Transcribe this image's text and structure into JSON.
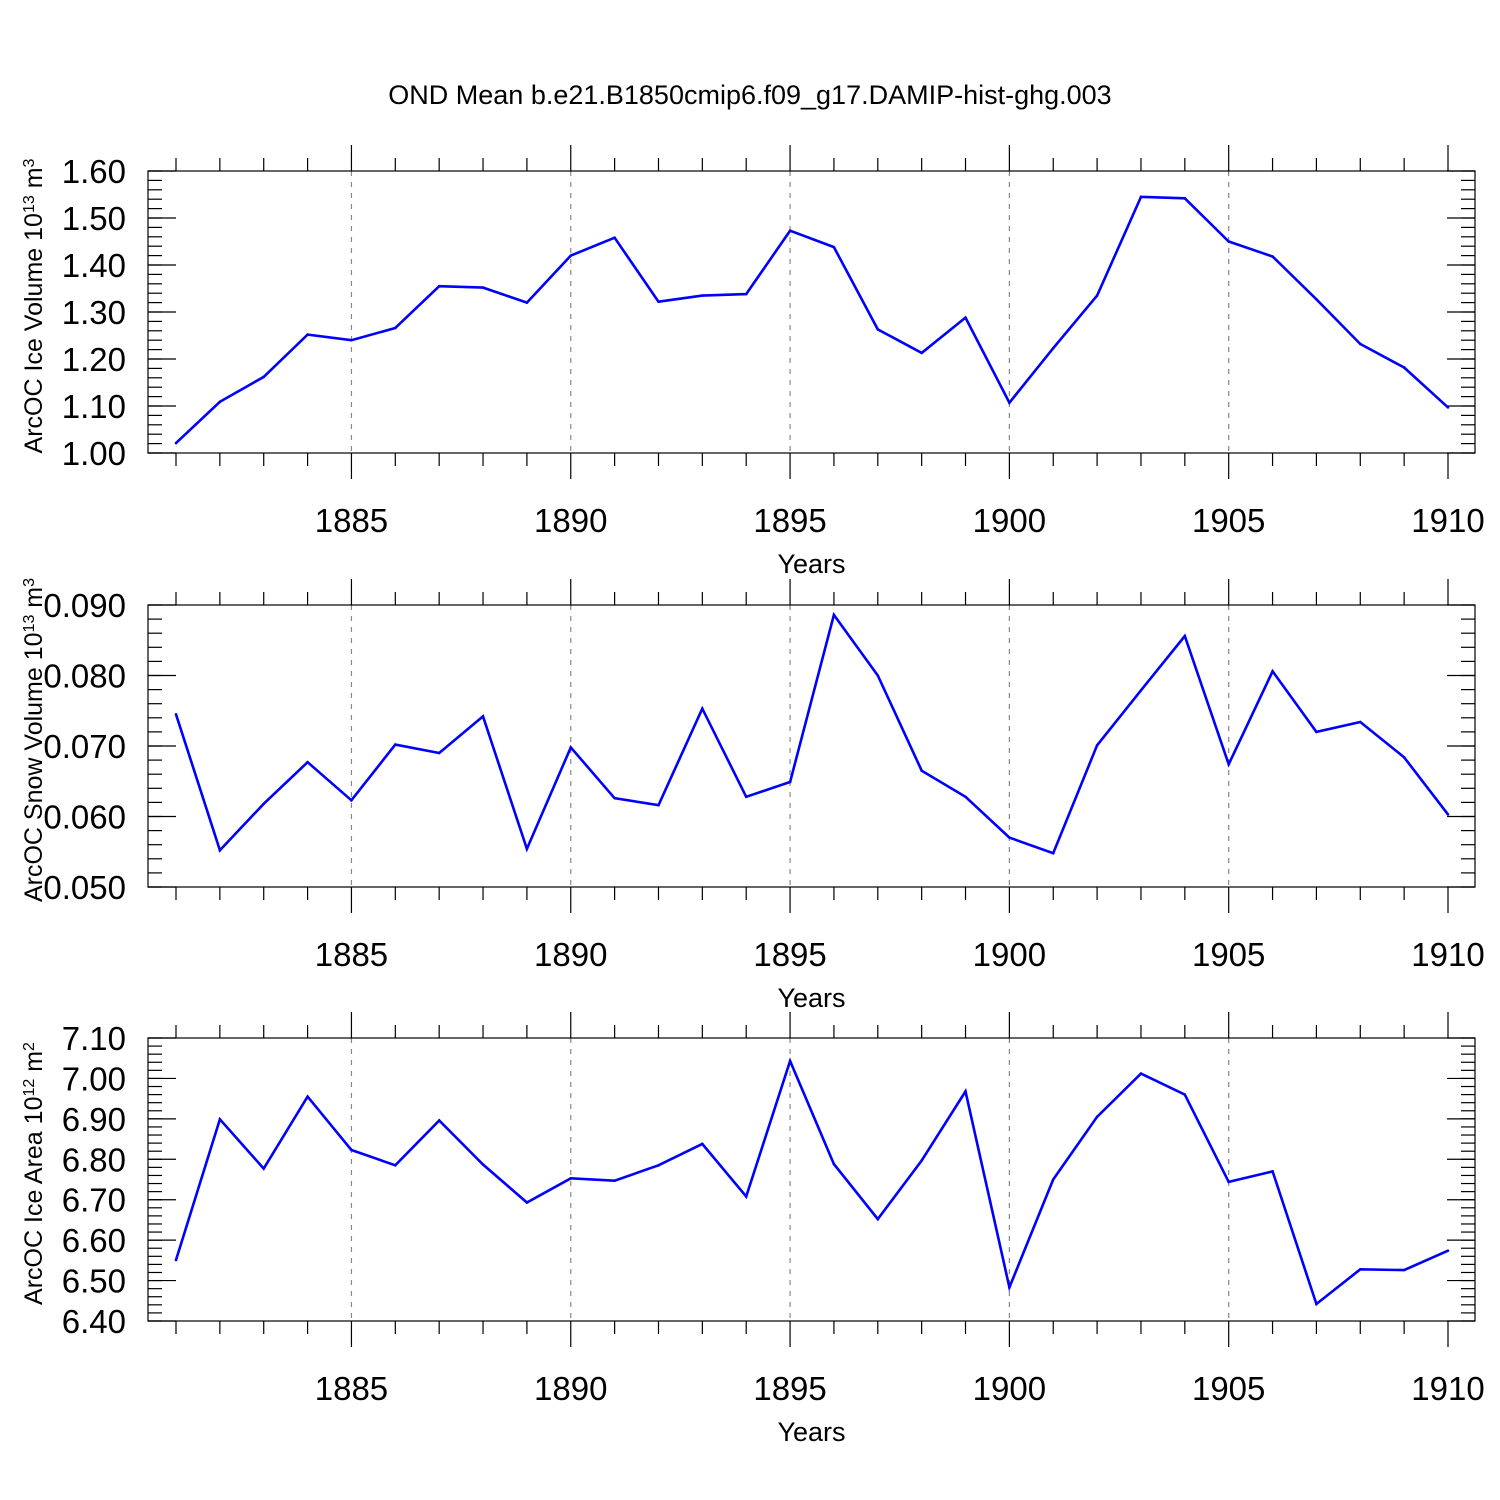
{
  "figure": {
    "title": "OND Mean b.e21.B1850cmip6.f09_g17.DAMIP-hist-ghg.003",
    "line_color": "#0000ff"
  },
  "chart_data": [
    {
      "type": "line",
      "title": "OND Mean b.e21.B1850cmip6.f09_g17.DAMIP-hist-ghg.003",
      "xlabel": "Years",
      "ylabel": "ArcOC Ice Volume 10",
      "ylabel_exp": "13",
      "ylabel_unit": " m",
      "ylabel_unit_exp": "3",
      "xlim": [
        1881,
        1910
      ],
      "ylim": [
        1.0,
        1.6
      ],
      "x_major_ticks": [
        1885,
        1890,
        1895,
        1900,
        1905,
        1910
      ],
      "x_tick_labels": [
        "1885",
        "1890",
        "1895",
        "1900",
        "1905",
        "1910"
      ],
      "y_major_ticks": [
        1.0,
        1.1,
        1.2,
        1.3,
        1.4,
        1.5,
        1.6
      ],
      "y_tick_labels": [
        "1.00",
        "1.10",
        "1.20",
        "1.30",
        "1.40",
        "1.50",
        "1.60"
      ],
      "y_minor_step": 0.02,
      "grid": "vertical dashed at major x ticks",
      "x": [
        1881,
        1882,
        1883,
        1884,
        1885,
        1886,
        1887,
        1888,
        1889,
        1890,
        1891,
        1892,
        1893,
        1894,
        1895,
        1896,
        1897,
        1898,
        1899,
        1900,
        1901,
        1902,
        1903,
        1904,
        1905,
        1906,
        1907,
        1908,
        1909,
        1910
      ],
      "y": [
        1.021,
        1.109,
        1.162,
        1.252,
        1.24,
        1.266,
        1.355,
        1.352,
        1.32,
        1.42,
        1.458,
        1.322,
        1.335,
        1.338,
        1.473,
        1.438,
        1.263,
        1.213,
        1.288,
        1.107,
        1.223,
        1.335,
        1.545,
        1.542,
        1.45,
        1.418,
        1.327,
        1.232,
        1.182,
        1.097
      ]
    },
    {
      "type": "line",
      "xlabel": "Years",
      "ylabel": "ArcOC Snow Volume 10",
      "ylabel_exp": "13",
      "ylabel_unit": " m",
      "ylabel_unit_exp": "3",
      "xlim": [
        1881,
        1910
      ],
      "ylim": [
        0.05,
        0.09
      ],
      "x_major_ticks": [
        1885,
        1890,
        1895,
        1900,
        1905,
        1910
      ],
      "x_tick_labels": [
        "1885",
        "1890",
        "1895",
        "1900",
        "1905",
        "1910"
      ],
      "y_major_ticks": [
        0.05,
        0.06,
        0.07,
        0.08,
        0.09
      ],
      "y_tick_labels": [
        "0.050",
        "0.060",
        "0.070",
        "0.080",
        "0.090"
      ],
      "y_minor_step": 0.002,
      "grid": "vertical dashed at major x ticks",
      "x": [
        1881,
        1882,
        1883,
        1884,
        1885,
        1886,
        1887,
        1888,
        1889,
        1890,
        1891,
        1892,
        1893,
        1894,
        1895,
        1896,
        1897,
        1898,
        1899,
        1900,
        1901,
        1902,
        1903,
        1904,
        1905,
        1906,
        1907,
        1908,
        1909,
        1910
      ],
      "y": [
        0.0745,
        0.0552,
        0.0618,
        0.0677,
        0.0623,
        0.0702,
        0.069,
        0.0742,
        0.0554,
        0.0698,
        0.0626,
        0.0616,
        0.0753,
        0.0628,
        0.0649,
        0.0886,
        0.08,
        0.0665,
        0.0628,
        0.057,
        0.0548,
        0.0701,
        0.0779,
        0.0856,
        0.0674,
        0.0806,
        0.072,
        0.0734,
        0.0684,
        0.0603
      ]
    },
    {
      "type": "line",
      "xlabel": "Years",
      "ylabel": "ArcOC Ice Area 10",
      "ylabel_exp": "12",
      "ylabel_unit": " m",
      "ylabel_unit_exp": "2",
      "xlim": [
        1881,
        1910
      ],
      "ylim": [
        6.4,
        7.1
      ],
      "x_major_ticks": [
        1885,
        1890,
        1895,
        1900,
        1905,
        1910
      ],
      "x_tick_labels": [
        "1885",
        "1890",
        "1895",
        "1900",
        "1905",
        "1910"
      ],
      "y_major_ticks": [
        6.4,
        6.5,
        6.6,
        6.7,
        6.8,
        6.9,
        7.0,
        7.1
      ],
      "y_tick_labels": [
        "6.40",
        "6.50",
        "6.60",
        "6.70",
        "6.80",
        "6.90",
        "7.00",
        "7.10"
      ],
      "y_minor_step": 0.02,
      "grid": "vertical dashed at major x ticks",
      "x": [
        1881,
        1882,
        1883,
        1884,
        1885,
        1886,
        1887,
        1888,
        1889,
        1890,
        1891,
        1892,
        1893,
        1894,
        1895,
        1896,
        1897,
        1898,
        1899,
        1900,
        1901,
        1902,
        1903,
        1904,
        1905,
        1906,
        1907,
        1908,
        1909,
        1910
      ],
      "y": [
        6.551,
        6.899,
        6.777,
        6.955,
        6.823,
        6.785,
        6.896,
        6.787,
        6.693,
        6.753,
        6.747,
        6.785,
        6.838,
        6.708,
        7.043,
        6.788,
        6.652,
        6.797,
        6.968,
        6.483,
        6.75,
        6.905,
        7.012,
        6.96,
        6.744,
        6.77,
        6.442,
        6.528,
        6.526,
        6.574
      ]
    }
  ]
}
